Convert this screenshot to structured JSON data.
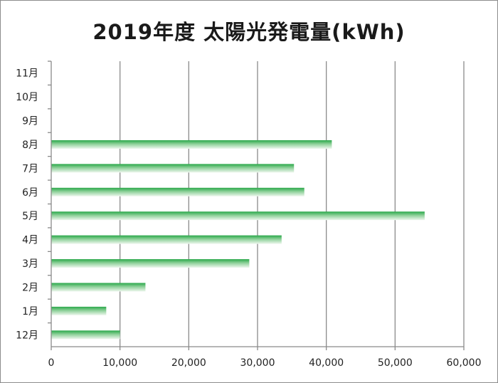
{
  "chart_data": {
    "type": "bar",
    "orientation": "horizontal",
    "title": "2019年度 太陽光発電量(kWh)",
    "categories": [
      "12月",
      "1月",
      "2月",
      "3月",
      "4月",
      "5月",
      "6月",
      "7月",
      "8月",
      "9月",
      "10月",
      "11月"
    ],
    "values": [
      10000,
      8000,
      13700,
      28800,
      33500,
      54300,
      36800,
      35300,
      40800,
      null,
      null,
      null
    ],
    "xlim": [
      0,
      60000
    ],
    "x_ticks": [
      "0",
      "10,000",
      "20,000",
      "30,000",
      "40,000",
      "50,000",
      "60,000"
    ],
    "grid": "vertical",
    "legend": "none",
    "colors": {
      "bar_top": "#2aa84a",
      "bar_bottom": "#e6f3e6",
      "grid": "#8a8a8a"
    }
  }
}
